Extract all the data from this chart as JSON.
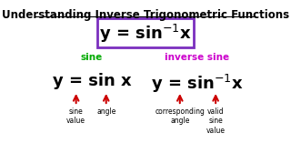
{
  "title": "Understanding Inverse Trigonometric Functions",
  "bg_color": "#ffffff",
  "title_color": "#000000",
  "title_fontsize": 8.5,
  "box_formula": "y = sin⁻¹x",
  "box_color": "#7b2fbe",
  "left_label": "sine",
  "left_label_color": "#00aa00",
  "right_label": "inverse sine",
  "right_label_color": "#cc00cc",
  "left_formula": "y = sin x",
  "right_formula_parts": [
    "y = sin",
    "⁻¹",
    "x"
  ],
  "arrow_color": "#cc0000",
  "annotation_color": "#000000",
  "annotations_left": [
    "sine\nvalue",
    "angle"
  ],
  "annotations_right": [
    "corresponding\nangle",
    "valid\nsine\nvalue"
  ]
}
